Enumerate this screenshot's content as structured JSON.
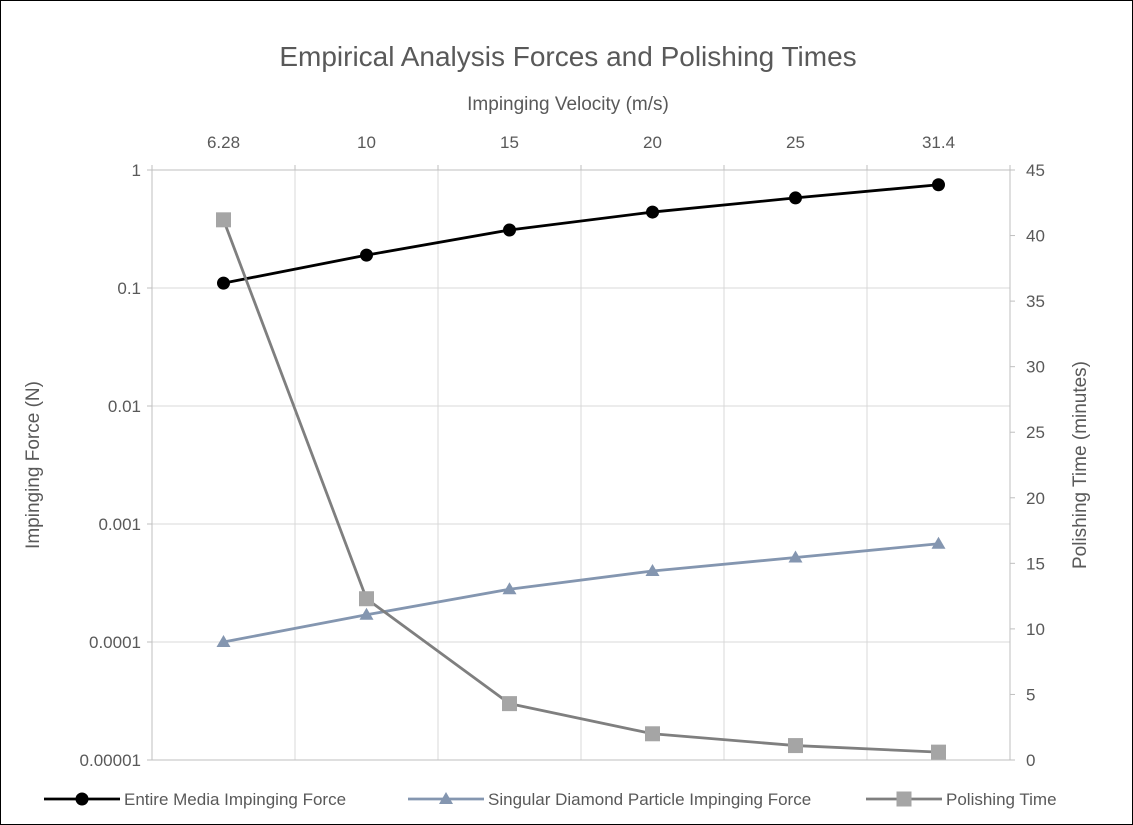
{
  "chart_data": {
    "type": "line",
    "title": "Empirical Analysis Forces and Polishing Times",
    "x_axis": {
      "label": "Impinging Velocity (m/s)",
      "position": "top",
      "categories": [
        "6.28",
        "10",
        "15",
        "20",
        "25",
        "31.4"
      ]
    },
    "y_axis_left": {
      "label": "Impinging Force (N)",
      "scale": "log",
      "range": [
        1e-05,
        1
      ],
      "ticks": [
        "1",
        "0.1",
        "0.01",
        "0.001",
        "0.0001",
        "0.00001"
      ]
    },
    "y_axis_right": {
      "label": "Polishing Time (minutes)",
      "scale": "linear",
      "range": [
        0,
        45
      ],
      "ticks": [
        "0",
        "5",
        "10",
        "15",
        "20",
        "25",
        "30",
        "35",
        "40",
        "45"
      ]
    },
    "grid": true,
    "legend_position": "bottom",
    "series": [
      {
        "name": "Entire Media Impinging Force",
        "axis": "left",
        "marker": "circle",
        "color": "#000000",
        "values": [
          0.11,
          0.19,
          0.31,
          0.44,
          0.58,
          0.75
        ]
      },
      {
        "name": "Singular Diamond Particle Impinging Force",
        "axis": "left",
        "marker": "triangle",
        "color": "#8496b0",
        "values": [
          0.0001,
          0.00017,
          0.00028,
          0.0004,
          0.00052,
          0.00068
        ]
      },
      {
        "name": "Polishing Time",
        "axis": "right",
        "marker": "square",
        "color": "#7f7f7f",
        "marker_color": "#a5a5a5",
        "values": [
          41.2,
          12.3,
          4.3,
          2.0,
          1.1,
          0.6
        ]
      }
    ]
  }
}
